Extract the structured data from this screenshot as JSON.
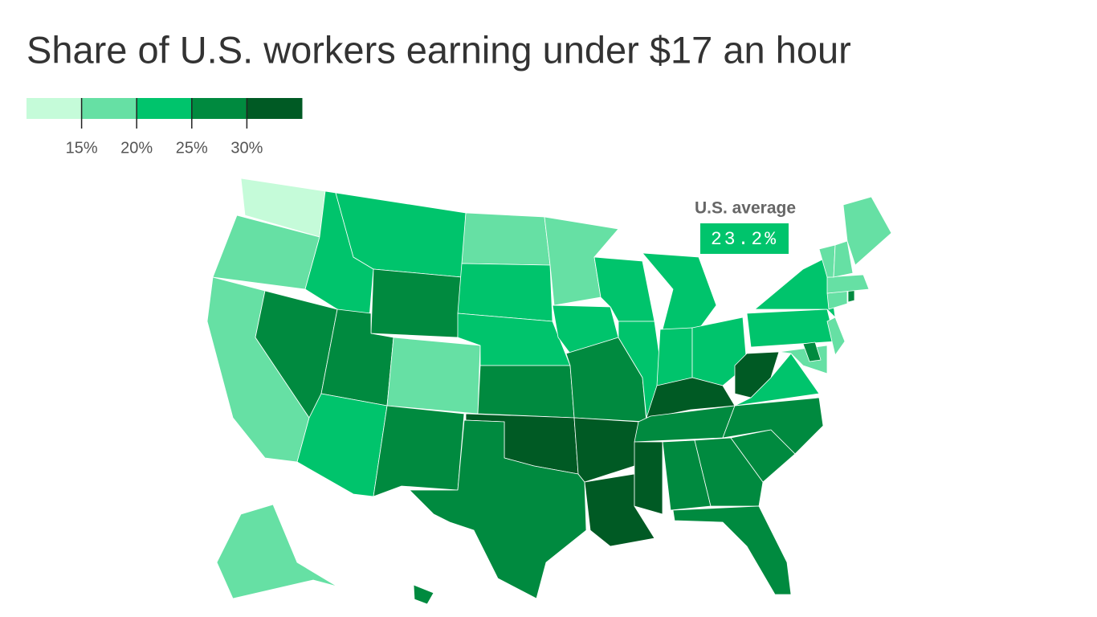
{
  "title": "Share of U.S. workers earning under $17 an hour",
  "legend": {
    "colors": [
      "#c5fbd9",
      "#66e0a4",
      "#00c46c",
      "#008a3f",
      "#005a24"
    ],
    "ticks": [
      {
        "value": 15,
        "label": "15%"
      },
      {
        "value": 20,
        "label": "20%"
      },
      {
        "value": 25,
        "label": "25%"
      },
      {
        "value": 30,
        "label": "30%"
      }
    ]
  },
  "annotation": {
    "label": "U.S. average",
    "value": 23.2,
    "value_label": "23.2%"
  },
  "values": [
    13,
    18,
    18,
    28,
    23,
    23,
    28,
    28,
    23,
    18,
    28,
    18,
    23,
    23,
    28,
    33,
    28,
    18,
    23,
    28,
    33,
    33,
    23,
    23,
    23,
    23,
    23,
    33,
    28,
    33,
    28,
    28,
    28,
    28,
    28,
    23,
    33,
    23,
    23,
    18,
    18,
    28,
    18,
    28,
    18,
    18,
    18,
    18,
    18,
    28
  ]
}
